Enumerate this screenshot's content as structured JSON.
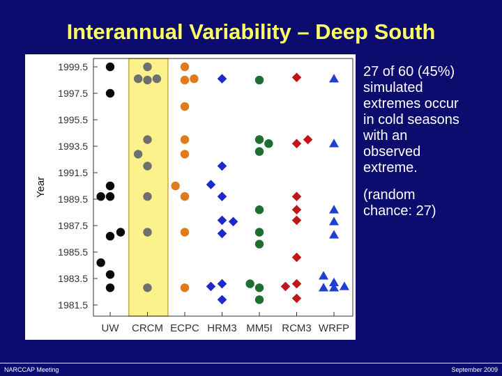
{
  "slide": {
    "title": "Interannual Variability – Deep South",
    "note_lines": [
      "27 of 60 (45%)",
      "simulated",
      "extremes occur",
      "in cold seasons",
      "with an",
      "observed",
      "extreme."
    ],
    "chance_lines": [
      "(random",
      "chance: 27)"
    ],
    "footer_left": "NARCCAP Meeting",
    "footer_right": "September 2009"
  },
  "chart_data": {
    "type": "scatter",
    "ylabel": "Year",
    "xlabel": "",
    "categories": [
      "UW",
      "CRCM",
      "ECPC",
      "HRM3",
      "MM5I",
      "RCM3",
      "WRFP"
    ],
    "yticks": [
      1999.5,
      1997.5,
      1995.5,
      1993.5,
      1991.5,
      1989.5,
      1987.5,
      1985.5,
      1983.5,
      1981.5
    ],
    "ylim": [
      1981.0,
      2000.0
    ],
    "highlight_category": "CRCM",
    "colors": {
      "highlight_band": "#fbf28c",
      "highlight_border": "#c9ad3c",
      "UW": "#0a0a0a",
      "CRCM": "#6f6f6f",
      "ECPC": "#e07a1c",
      "HRM3": "#1f28c8",
      "MM5I": "#1e6e30",
      "RCM3": "#c0161b",
      "WRFP": "#1f3fcf"
    },
    "series": [
      {
        "model": "UW",
        "marker": "circle",
        "points": [
          {
            "x": 0.0,
            "y": 1999.5
          },
          {
            "x": 0.0,
            "y": 1997.5
          },
          {
            "x": 0.0,
            "y": 1990.5
          },
          {
            "x": -0.25,
            "y": 1989.7
          },
          {
            "x": 0.0,
            "y": 1989.7
          },
          {
            "x": 0.0,
            "y": 1986.7
          },
          {
            "x": 0.28,
            "y": 1987.0
          },
          {
            "x": -0.25,
            "y": 1984.7
          },
          {
            "x": 0.0,
            "y": 1983.8
          },
          {
            "x": 0.0,
            "y": 1982.8
          }
        ]
      },
      {
        "model": "CRCM",
        "marker": "circle",
        "points": [
          {
            "x": 0.0,
            "y": 1999.5
          },
          {
            "x": -0.25,
            "y": 1998.6
          },
          {
            "x": 0.0,
            "y": 1998.5
          },
          {
            "x": 0.25,
            "y": 1998.6
          },
          {
            "x": 0.0,
            "y": 1994.0
          },
          {
            "x": -0.25,
            "y": 1992.9
          },
          {
            "x": 0.0,
            "y": 1992.0
          },
          {
            "x": 0.0,
            "y": 1989.7
          },
          {
            "x": 0.0,
            "y": 1987.0
          },
          {
            "x": 0.0,
            "y": 1982.8
          }
        ]
      },
      {
        "model": "ECPC",
        "marker": "circle",
        "points": [
          {
            "x": 0.0,
            "y": 1999.5
          },
          {
            "x": 0.0,
            "y": 1998.5
          },
          {
            "x": 0.25,
            "y": 1998.6
          },
          {
            "x": 0.0,
            "y": 1996.5
          },
          {
            "x": 0.0,
            "y": 1994.0
          },
          {
            "x": 0.0,
            "y": 1992.9
          },
          {
            "x": -0.25,
            "y": 1990.5
          },
          {
            "x": 0.0,
            "y": 1989.7
          },
          {
            "x": 0.0,
            "y": 1987.0
          },
          {
            "x": 0.0,
            "y": 1982.8
          }
        ]
      },
      {
        "model": "HRM3",
        "marker": "diamond",
        "points": [
          {
            "x": 0.0,
            "y": 1998.6
          },
          {
            "x": 0.0,
            "y": 1992.0
          },
          {
            "x": -0.3,
            "y": 1990.6
          },
          {
            "x": 0.0,
            "y": 1989.7
          },
          {
            "x": 0.0,
            "y": 1987.9
          },
          {
            "x": 0.3,
            "y": 1987.8
          },
          {
            "x": 0.0,
            "y": 1986.9
          },
          {
            "x": -0.3,
            "y": 1982.9
          },
          {
            "x": 0.0,
            "y": 1983.1
          },
          {
            "x": 0.0,
            "y": 1981.9
          }
        ]
      },
      {
        "model": "MM5I",
        "marker": "circle",
        "points": [
          {
            "x": 0.0,
            "y": 1998.5
          },
          {
            "x": 0.0,
            "y": 1994.0
          },
          {
            "x": 0.25,
            "y": 1993.7
          },
          {
            "x": 0.0,
            "y": 1993.1
          },
          {
            "x": 0.0,
            "y": 1988.7
          },
          {
            "x": 0.0,
            "y": 1987.0
          },
          {
            "x": 0.0,
            "y": 1986.1
          },
          {
            "x": -0.25,
            "y": 1983.1
          },
          {
            "x": 0.0,
            "y": 1982.8
          },
          {
            "x": 0.0,
            "y": 1981.9
          }
        ]
      },
      {
        "model": "RCM3",
        "marker": "diamond",
        "points": [
          {
            "x": 0.0,
            "y": 1998.7
          },
          {
            "x": 0.0,
            "y": 1993.7
          },
          {
            "x": 0.3,
            "y": 1994.0
          },
          {
            "x": 0.0,
            "y": 1989.7
          },
          {
            "x": 0.0,
            "y": 1988.7
          },
          {
            "x": 0.0,
            "y": 1987.9
          },
          {
            "x": 0.0,
            "y": 1985.1
          },
          {
            "x": -0.3,
            "y": 1982.9
          },
          {
            "x": 0.0,
            "y": 1983.1
          },
          {
            "x": 0.0,
            "y": 1982.0
          }
        ]
      },
      {
        "model": "WRFP",
        "marker": "triangle",
        "points": [
          {
            "x": 0.0,
            "y": 1998.6
          },
          {
            "x": 0.0,
            "y": 1993.7
          },
          {
            "x": 0.0,
            "y": 1988.7
          },
          {
            "x": 0.0,
            "y": 1987.8
          },
          {
            "x": 0.0,
            "y": 1986.8
          },
          {
            "x": -0.28,
            "y": 1983.7
          },
          {
            "x": -0.28,
            "y": 1982.8
          },
          {
            "x": 0.0,
            "y": 1983.2
          },
          {
            "x": 0.0,
            "y": 1982.8
          },
          {
            "x": 0.28,
            "y": 1982.9
          }
        ]
      }
    ]
  }
}
